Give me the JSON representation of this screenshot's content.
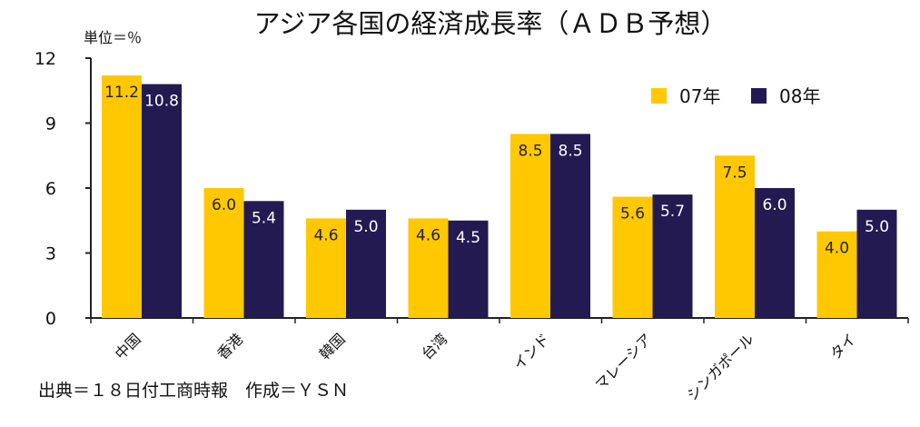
{
  "chart_data": {
    "type": "bar",
    "title": "アジア各国の経済成長率（ＡＤＢ予想）",
    "unit_label": "単位＝％",
    "source": "出典＝１８日付工商時報　作成＝ＹＳＮ",
    "categories": [
      "中国",
      "香港",
      "韓国",
      "台湾",
      "インド",
      "マレーシア",
      "シンガポール",
      "タイ"
    ],
    "series": [
      {
        "name": "07年",
        "color": "#FFC800",
        "values": [
          11.2,
          6.0,
          4.6,
          4.6,
          8.5,
          5.6,
          7.5,
          4.0
        ],
        "labels": [
          "11.2",
          "6.0",
          "4.6",
          "4.6",
          "8.5",
          "5.6",
          "7.5",
          "4.0"
        ]
      },
      {
        "name": "08年",
        "color": "#231A52",
        "values": [
          10.8,
          5.4,
          5.0,
          4.5,
          8.5,
          5.7,
          6.0,
          5.0
        ],
        "labels": [
          "10.8",
          "5.4",
          "5.0",
          "4.5",
          "8.5",
          "5.7",
          "6.0",
          "5.0"
        ]
      }
    ],
    "yticks": [
      "0",
      "3",
      "6",
      "9",
      "12"
    ],
    "ylim": [
      0,
      12
    ],
    "grid": false,
    "legend_position": "top-right"
  }
}
